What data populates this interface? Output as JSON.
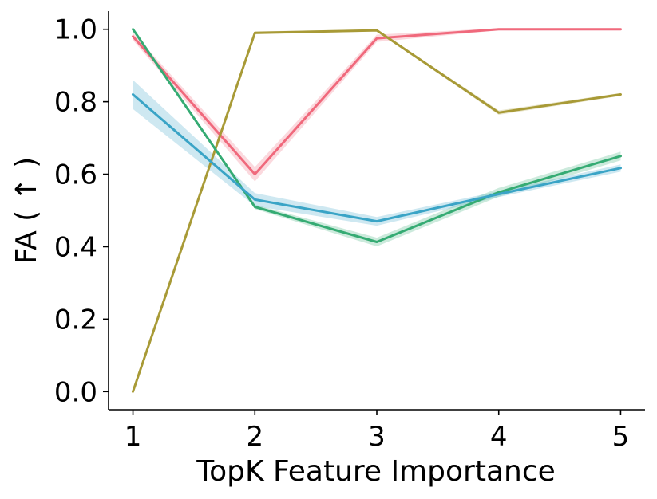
{
  "chart_data": {
    "type": "line",
    "xlabel": "TopK Feature Importance",
    "ylabel": "FA ( ↑ )",
    "x": [
      1,
      2,
      3,
      4,
      5
    ],
    "xlim": [
      0.8,
      5.2
    ],
    "ylim": [
      -0.05,
      1.05
    ],
    "xticks": [
      "1",
      "2",
      "3",
      "4",
      "5"
    ],
    "yticks": [
      "0.0",
      "0.2",
      "0.4",
      "0.6",
      "0.8",
      "1.0"
    ],
    "grid": false,
    "series": [
      {
        "color": "#f0697c",
        "values": [
          0.98,
          0.6,
          0.975,
          1.0,
          1.0
        ],
        "band": [
          0.01,
          0.02,
          0.01,
          0.003,
          0.003
        ]
      },
      {
        "color": "#a89a36",
        "values": [
          0.0,
          0.99,
          0.997,
          0.77,
          0.82
        ],
        "band": [
          0.003,
          0.004,
          0.003,
          0.006,
          0.004
        ]
      },
      {
        "color": "#35ab73",
        "values": [
          1.0,
          0.51,
          0.413,
          0.55,
          0.65
        ],
        "band": [
          0.004,
          0.006,
          0.012,
          0.012,
          0.012
        ]
      },
      {
        "color": "#3aa4c6",
        "values": [
          0.82,
          0.53,
          0.47,
          0.545,
          0.617
        ],
        "band": [
          0.04,
          0.018,
          0.012,
          0.008,
          0.01
        ]
      }
    ]
  }
}
